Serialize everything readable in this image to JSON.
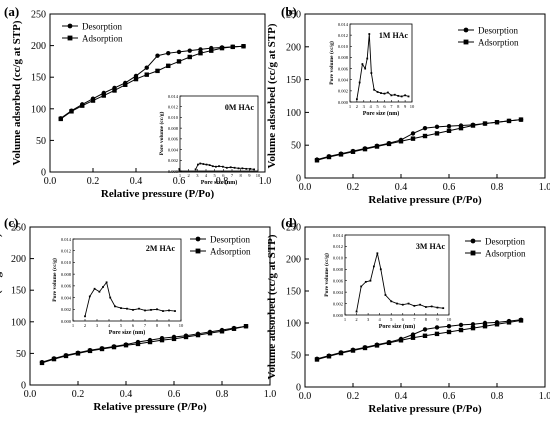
{
  "chart_data": [
    {
      "type": "line",
      "panel_label": "(a)",
      "xlabel": "Relative pressure (P/Po)",
      "ylabel": "Volume adsorbed (cc/g at STP)",
      "xlim": [
        0,
        1
      ],
      "ylim": [
        0,
        250
      ],
      "xticks": [
        "0.0",
        "0.2",
        "0.4",
        "0.6",
        "0.8",
        "1.0"
      ],
      "yticks": [
        "0",
        "50",
        "100",
        "150",
        "200",
        "250"
      ],
      "legend_position": "top-left",
      "series": [
        {
          "name": "Desorption",
          "marker": "circle",
          "x": [
            0.05,
            0.1,
            0.15,
            0.2,
            0.25,
            0.3,
            0.35,
            0.4,
            0.45,
            0.5,
            0.55,
            0.6,
            0.65,
            0.7,
            0.75,
            0.8,
            0.85,
            0.9
          ],
          "y": [
            85,
            97,
            107,
            116,
            125,
            133,
            141,
            152,
            165,
            184,
            188,
            190,
            192,
            194,
            196,
            197,
            198,
            199
          ]
        },
        {
          "name": "Adsorption",
          "marker": "square",
          "x": [
            0.05,
            0.1,
            0.15,
            0.2,
            0.25,
            0.3,
            0.35,
            0.4,
            0.45,
            0.5,
            0.55,
            0.6,
            0.65,
            0.7,
            0.75,
            0.8,
            0.85,
            0.9
          ],
          "y": [
            84,
            96,
            105,
            113,
            121,
            129,
            138,
            147,
            154,
            160,
            168,
            175,
            182,
            188,
            192,
            196,
            198,
            199
          ]
        }
      ],
      "inset": {
        "label": "0M HAc",
        "xlabel": "Pore size (nm)",
        "ylabel": "Pore volume (cc/g)",
        "xlim": [
          0,
          10
        ],
        "ylim": [
          0,
          0.014
        ],
        "xticks": [
          "1",
          "2",
          "3",
          "4",
          "5",
          "6",
          "7",
          "8",
          "9",
          "10"
        ],
        "yticks": [
          "0.000",
          "0.002",
          "0.004",
          "0.006",
          "0.008",
          "0.010",
          "0.012",
          "0.014"
        ],
        "x": [
          2,
          2.3,
          2.6,
          3,
          3.4,
          3.8,
          4.2,
          4.6,
          5,
          5.5,
          6,
          6.5,
          7,
          7.5,
          8,
          8.5,
          9,
          9.5
        ],
        "y": [
          0.0003,
          0.0012,
          0.0014,
          0.0013,
          0.0012,
          0.0011,
          0.0009,
          0.0008,
          0.0009,
          0.0008,
          0.0006,
          0.0007,
          0.0006,
          0.0005,
          0.0005,
          0.0004,
          0.0004,
          0.0003
        ]
      }
    },
    {
      "type": "line",
      "panel_label": "(b)",
      "xlabel": "Relative pressure (P/Po)",
      "ylabel": "Volume adsorbed (cc/g at STP)",
      "xlim": [
        0,
        1
      ],
      "ylim": [
        0,
        250
      ],
      "xticks": [
        "0.0",
        "0.2",
        "0.4",
        "0.6",
        "0.8",
        "1.0"
      ],
      "yticks": [
        "0",
        "50",
        "100",
        "150",
        "200",
        "250"
      ],
      "legend_position": "top-right",
      "series": [
        {
          "name": "Desorption",
          "marker": "circle",
          "x": [
            0.05,
            0.1,
            0.15,
            0.2,
            0.25,
            0.3,
            0.35,
            0.4,
            0.45,
            0.5,
            0.55,
            0.6,
            0.65,
            0.7,
            0.75,
            0.8,
            0.85,
            0.9
          ],
          "y": [
            28,
            33,
            37,
            41,
            45,
            49,
            53,
            58,
            68,
            76,
            78,
            79,
            80,
            81,
            83,
            85,
            87,
            89
          ]
        },
        {
          "name": "Adsorption",
          "marker": "square",
          "x": [
            0.05,
            0.1,
            0.15,
            0.2,
            0.25,
            0.3,
            0.35,
            0.4,
            0.45,
            0.5,
            0.55,
            0.6,
            0.65,
            0.7,
            0.75,
            0.8,
            0.85,
            0.9
          ],
          "y": [
            27,
            32,
            36,
            40,
            44,
            48,
            52,
            56,
            60,
            64,
            68,
            72,
            76,
            80,
            83,
            85,
            87,
            89
          ]
        }
      ],
      "inset": {
        "label": "1M HAc",
        "xlabel": "Pore size (nm)",
        "ylabel": "Pore volume (cc/g)",
        "xlim": [
          1,
          10
        ],
        "ylim": [
          0,
          0.014
        ],
        "xticks": [
          "1",
          "2",
          "3",
          "4",
          "5",
          "6",
          "7",
          "8",
          "9",
          "10"
        ],
        "yticks": [
          "0.000",
          "0.002",
          "0.004",
          "0.006",
          "0.008",
          "0.010",
          "0.012",
          "0.014"
        ],
        "x": [
          2,
          2.4,
          2.8,
          3.2,
          3.5,
          3.8,
          4.1,
          4.5,
          5,
          5.5,
          6,
          6.5,
          7,
          7.5,
          8,
          8.5,
          9,
          9.5
        ],
        "y": [
          0.0005,
          0.0035,
          0.0068,
          0.006,
          0.0078,
          0.0122,
          0.0052,
          0.0022,
          0.0018,
          0.0016,
          0.0015,
          0.0017,
          0.0012,
          0.0013,
          0.0011,
          0.001,
          0.0012,
          0.001
        ]
      }
    },
    {
      "type": "line",
      "panel_label": "(c)",
      "xlabel": "Relative pressure (P/Po)",
      "ylabel": "Volume adsorbed (cc/g at STP)",
      "xlim": [
        0,
        1
      ],
      "ylim": [
        0,
        250
      ],
      "xticks": [
        "0.0",
        "0.2",
        "0.4",
        "0.6",
        "0.8",
        "1.0"
      ],
      "yticks": [
        "0",
        "50",
        "100",
        "150",
        "200",
        "250"
      ],
      "legend_position": "top-right",
      "series": [
        {
          "name": "Desorption",
          "marker": "circle",
          "x": [
            0.05,
            0.1,
            0.15,
            0.2,
            0.25,
            0.3,
            0.35,
            0.4,
            0.45,
            0.5,
            0.55,
            0.6,
            0.65,
            0.7,
            0.75,
            0.8,
            0.85,
            0.9
          ],
          "y": [
            36,
            42,
            47,
            51,
            55,
            58,
            61,
            64,
            68,
            71,
            74,
            76,
            78,
            81,
            84,
            87,
            90,
            93
          ]
        },
        {
          "name": "Adsorption",
          "marker": "square",
          "x": [
            0.05,
            0.1,
            0.15,
            0.2,
            0.25,
            0.3,
            0.35,
            0.4,
            0.45,
            0.5,
            0.55,
            0.6,
            0.65,
            0.7,
            0.75,
            0.8,
            0.85,
            0.9
          ],
          "y": [
            35,
            41,
            46,
            50,
            54,
            57,
            60,
            63,
            65,
            68,
            71,
            73,
            76,
            79,
            82,
            85,
            89,
            93
          ]
        }
      ],
      "inset": {
        "label": "2M HAc",
        "xlabel": "Pore size (nm)",
        "ylabel": "Pore volume (cc/g)",
        "xlim": [
          1,
          10
        ],
        "ylim": [
          0,
          0.014
        ],
        "xticks": [
          "1",
          "2",
          "3",
          "4",
          "5",
          "6",
          "7",
          "8",
          "9",
          "10"
        ],
        "yticks": [
          "0.000",
          "0.002",
          "0.004",
          "0.006",
          "0.008",
          "0.010",
          "0.012",
          "0.014"
        ],
        "x": [
          2,
          2.4,
          2.8,
          3.2,
          3.5,
          3.8,
          4.1,
          4.5,
          5,
          5.5,
          6,
          6.5,
          7,
          7.5,
          8,
          8.5,
          9,
          9.5
        ],
        "y": [
          0.0008,
          0.0042,
          0.0055,
          0.005,
          0.0058,
          0.0066,
          0.004,
          0.0025,
          0.0022,
          0.0021,
          0.0019,
          0.0021,
          0.0018,
          0.0019,
          0.002,
          0.0017,
          0.0018,
          0.0017
        ]
      }
    },
    {
      "type": "line",
      "panel_label": "(d)",
      "xlabel": "Relative pressure (P/Po)",
      "ylabel": "Volume adsorbed (cc/g at STP)",
      "xlim": [
        0,
        1
      ],
      "ylim": [
        0,
        250
      ],
      "xticks": [
        "0.0",
        "0.2",
        "0.4",
        "0.6",
        "0.8",
        "1.0"
      ],
      "yticks": [
        "0",
        "50",
        "100",
        "150",
        "200",
        "250"
      ],
      "legend_position": "top-right",
      "series": [
        {
          "name": "Desorption",
          "marker": "circle",
          "x": [
            0.05,
            0.1,
            0.15,
            0.2,
            0.25,
            0.3,
            0.35,
            0.4,
            0.45,
            0.5,
            0.55,
            0.6,
            0.65,
            0.7,
            0.75,
            0.8,
            0.85,
            0.9
          ],
          "y": [
            44,
            49,
            54,
            58,
            62,
            66,
            70,
            75,
            82,
            90,
            93,
            95,
            97,
            98,
            100,
            101,
            103,
            105
          ]
        },
        {
          "name": "Adsorption",
          "marker": "square",
          "x": [
            0.05,
            0.1,
            0.15,
            0.2,
            0.25,
            0.3,
            0.35,
            0.4,
            0.45,
            0.5,
            0.55,
            0.6,
            0.65,
            0.7,
            0.75,
            0.8,
            0.85,
            0.9
          ],
          "y": [
            43,
            48,
            53,
            57,
            61,
            65,
            69,
            73,
            77,
            80,
            83,
            86,
            89,
            92,
            95,
            98,
            101,
            104
          ]
        }
      ],
      "inset": {
        "label": "3M HAc",
        "xlabel": "Pore size (nm)",
        "ylabel": "Pore volume (cc/g)",
        "xlim": [
          1,
          10
        ],
        "ylim": [
          0,
          0.014
        ],
        "xticks": [
          "1",
          "2",
          "3",
          "4",
          "5",
          "6",
          "7",
          "8",
          "9",
          "10"
        ],
        "yticks": [
          "0.000",
          "0.002",
          "0.004",
          "0.006",
          "0.008",
          "0.010",
          "0.012",
          "0.014"
        ],
        "x": [
          2,
          2.4,
          2.8,
          3.2,
          3.5,
          3.8,
          4.1,
          4.5,
          5,
          5.5,
          6,
          6.5,
          7,
          7.5,
          8,
          8.5,
          9,
          9.5
        ],
        "y": [
          0.0006,
          0.005,
          0.0058,
          0.006,
          0.0085,
          0.0108,
          0.008,
          0.0035,
          0.0024,
          0.002,
          0.0018,
          0.002,
          0.0016,
          0.0018,
          0.0014,
          0.0015,
          0.0013,
          0.0012
        ]
      }
    }
  ]
}
